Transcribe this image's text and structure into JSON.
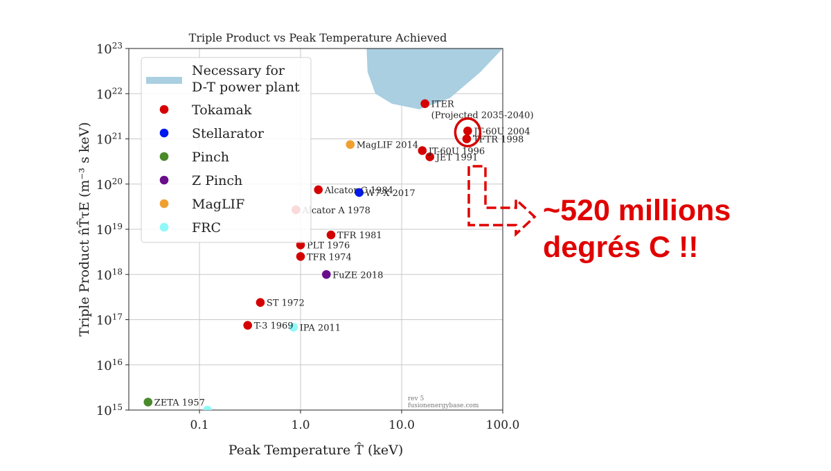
{
  "chart_data": {
    "type": "scatter",
    "title": "Triple Product vs Peak Temperature Achieved",
    "xlabel": "Peak Temperature T̂ (keV)",
    "ylabel": "Triple Product n̂T̂τE (m⁻³ s keV)",
    "xscale": "log",
    "yscale": "log",
    "xlim": [
      0.02,
      100
    ],
    "ylim": [
      1000000000000000.0,
      1e+23
    ],
    "grid": true,
    "x_ticks": [
      {
        "value": 0.1,
        "label": "0.1"
      },
      {
        "value": 1,
        "label": "1.0"
      },
      {
        "value": 10,
        "label": "10.0"
      },
      {
        "value": 100,
        "label": "100.0"
      }
    ],
    "y_ticks": [
      {
        "exp": 15,
        "base": "10",
        "power": "15"
      },
      {
        "exp": 16,
        "base": "10",
        "power": "16"
      },
      {
        "exp": 17,
        "base": "10",
        "power": "17"
      },
      {
        "exp": 18,
        "base": "10",
        "power": "18"
      },
      {
        "exp": 19,
        "base": "10",
        "power": "19"
      },
      {
        "exp": 20,
        "base": "10",
        "power": "20"
      },
      {
        "exp": 21,
        "base": "10",
        "power": "21"
      },
      {
        "exp": 22,
        "base": "10",
        "power": "22"
      },
      {
        "exp": 23,
        "base": "10",
        "power": "23"
      }
    ],
    "legend_position": "top-left",
    "legend": [
      {
        "label": "Necessary for D-T power plant",
        "lines": [
          "Necessary for",
          "D-T power plant"
        ],
        "kind": "region",
        "color": "#a9cfe1"
      },
      {
        "label": "Tokamak",
        "kind": "marker",
        "color": "#d40000"
      },
      {
        "label": "Stellarator",
        "kind": "marker",
        "color": "#0018f0"
      },
      {
        "label": "Pinch",
        "kind": "marker",
        "color": "#4a8a2a"
      },
      {
        "label": "Z Pinch",
        "kind": "marker",
        "color": "#6a0e8a"
      },
      {
        "label": "MagLIF",
        "kind": "marker",
        "color": "#f0a030"
      },
      {
        "label": "FRC",
        "kind": "marker",
        "color": "#8ff8f8"
      }
    ],
    "region_dt_power_plant": [
      [
        4.5,
        1e+23
      ],
      [
        4.6,
        3e+22
      ],
      [
        5.5,
        1e+22
      ],
      [
        8,
        6e+21
      ],
      [
        15,
        4.5e+21
      ],
      [
        30,
        8e+21
      ],
      [
        60,
        3e+22
      ],
      [
        100,
        1e+23
      ]
    ],
    "points": [
      {
        "label": "ITER",
        "label2": "(Projected 2035-2040)",
        "type": "Tokamak",
        "x": 17,
        "y": 6e+21
      },
      {
        "label": "JT-60U 2004",
        "type": "Tokamak",
        "x": 45,
        "y": 1.5e+21
      },
      {
        "label": "TFTR 1998",
        "type": "Tokamak",
        "x": 44,
        "y": 1e+21
      },
      {
        "label": "JT-60U 1996",
        "type": "Tokamak",
        "x": 16,
        "y": 5.5e+20
      },
      {
        "label": "JET 1991",
        "type": "Tokamak",
        "x": 19,
        "y": 4e+20
      },
      {
        "label": "MagLIF 2014",
        "type": "MagLIF",
        "x": 3.1,
        "y": 7.5e+20
      },
      {
        "label": "Alcator C 1984",
        "type": "Tokamak",
        "x": 1.5,
        "y": 7.5e+19
      },
      {
        "label": "W7-X 2017",
        "type": "Stellarator",
        "x": 3.8,
        "y": 6.5e+19
      },
      {
        "label": "Alcator A 1978",
        "type": "Tokamak",
        "x": 0.9,
        "y": 2.7e+19
      },
      {
        "label": "TFR 1981",
        "type": "Tokamak",
        "x": 2.0,
        "y": 7.5e+18
      },
      {
        "label": "PLT 1976",
        "type": "Tokamak",
        "x": 1.0,
        "y": 4.5e+18
      },
      {
        "label": "TFR 1974",
        "type": "Tokamak",
        "x": 1.0,
        "y": 2.5e+18
      },
      {
        "label": "FuZE 2018",
        "type": "Z Pinch",
        "x": 1.8,
        "y": 1e+18
      },
      {
        "label": "ST 1972",
        "type": "Tokamak",
        "x": 0.4,
        "y": 2.4e+17
      },
      {
        "label": "T-3 1969",
        "type": "Tokamak",
        "x": 0.3,
        "y": 7.5e+16
      },
      {
        "label": "IPA 2011",
        "type": "FRC",
        "x": 0.85,
        "y": 6.8e+16
      },
      {
        "label": "ZETA 1957",
        "type": "Pinch",
        "x": 0.031,
        "y": 1500000000000000.0
      },
      {
        "label": "",
        "type": "FRC",
        "x": 0.12,
        "y": 1000000000000000.0
      }
    ],
    "watermark": [
      "rev 5",
      "fusionenergybase.com"
    ],
    "highlight_circle": {
      "x": 45,
      "y": 1.4e+21
    }
  },
  "annotation": {
    "line1": "~520 millions",
    "line2": "degrés C !!",
    "color": "#e00000"
  }
}
